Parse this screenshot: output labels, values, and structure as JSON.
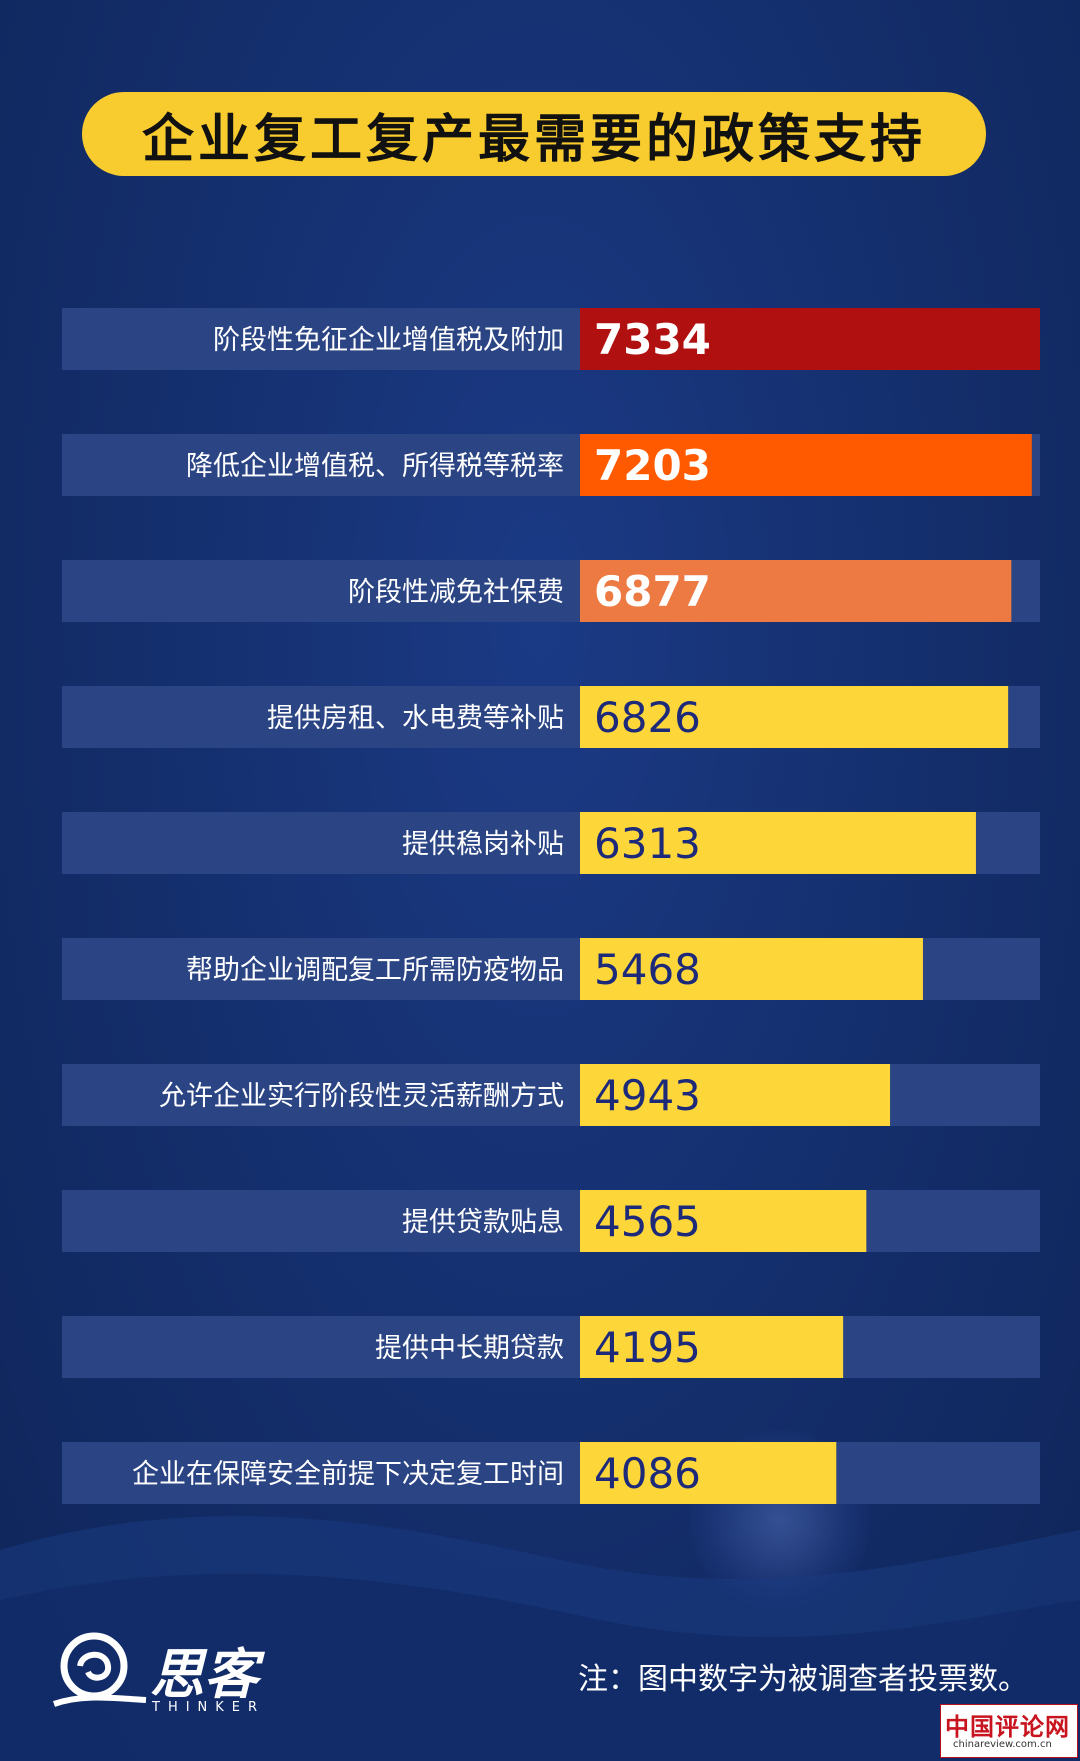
{
  "chart_data": {
    "type": "bar",
    "orientation": "horizontal",
    "title": "企业复工复产最需要的政策支持",
    "categories": [
      "阶段性免征企业增值税及附加",
      "降低企业增值税、所得税等税率",
      "阶段性减免社保费",
      "提供房租、水电费等补贴",
      "提供稳岗补贴",
      "帮助企业调配复工所需防疫物品",
      "允许企业实行阶段性灵活薪酬方式",
      "提供贷款贴息",
      "提供中长期贷款",
      "企业在保障安全前提下决定复工时间"
    ],
    "values": [
      7334,
      7203,
      6877,
      6826,
      6313,
      5468,
      4943,
      4565,
      4195,
      4086
    ],
    "bar_colors": [
      "#b01010",
      "#ff5a00",
      "#ec7a42",
      "#fdd63a",
      "#fdd63a",
      "#fdd63a",
      "#fdd63a",
      "#fdd63a",
      "#fdd63a",
      "#fdd63a"
    ],
    "value_text_colors": [
      "#ffffff",
      "#ffffff",
      "#ffffff",
      "#1d2a7a",
      "#1d2a7a",
      "#1d2a7a",
      "#1d2a7a",
      "#1d2a7a",
      "#1d2a7a",
      "#1d2a7a"
    ],
    "xlim": [
      0,
      7334
    ],
    "grid": false,
    "legend": "none"
  },
  "colors": {
    "background": "#15306f",
    "track": "#2b4584",
    "title_pill": "#f8cc2e"
  },
  "note": "注：图中数字为被调查者投票数。",
  "logo": {
    "name": "思客",
    "sub": "THINKER"
  },
  "watermark": {
    "name": "中国评论网",
    "url": "chinareview.com.cn"
  }
}
